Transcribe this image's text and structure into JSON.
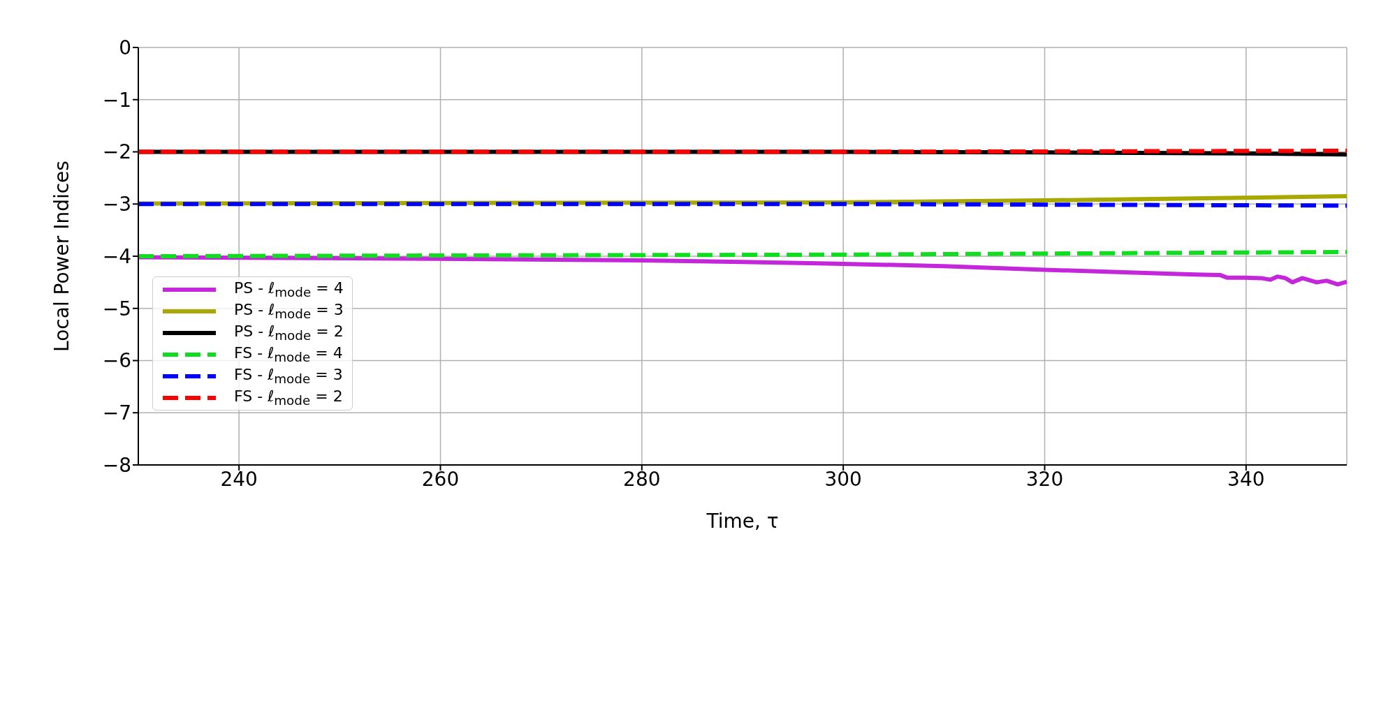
{
  "chart_data": {
    "type": "line",
    "xlabel": "Time, τ",
    "ylabel": "Local Power Indices",
    "xlim": [
      230,
      350
    ],
    "xticks": [
      240,
      260,
      280,
      300,
      320,
      340
    ],
    "ylim": [
      -8,
      0
    ],
    "yticks": [
      -8,
      -7,
      -6,
      -5,
      -4,
      -3,
      -2,
      -1,
      0
    ],
    "grid": true,
    "legend": "bottom left",
    "marker": "none",
    "series": [
      {
        "name": "PS - ℓ$_{mode}$ = 4",
        "color": "#c327d9",
        "line_style": "solid",
        "x": [
          230,
          260,
          280,
          290,
          298.5,
          310,
          320,
          330,
          335,
          337.4,
          338.1,
          339.8,
          341.5,
          342.4,
          343.1,
          343.9,
          344.6,
          345.6,
          347,
          348,
          349.1,
          350
        ],
        "values": [
          -4.02,
          -4.05,
          -4.08,
          -4.11,
          -4.14,
          -4.19,
          -4.26,
          -4.32,
          -4.35,
          -4.36,
          -4.41,
          -4.41,
          -4.42,
          -4.45,
          -4.39,
          -4.42,
          -4.5,
          -4.42,
          -4.5,
          -4.47,
          -4.54,
          -4.49
        ]
      },
      {
        "name": "PS - ℓ$_{mode}$ = 3",
        "color": "#a8a800",
        "line_style": "solid",
        "x": [
          230,
          260,
          298.5,
          320,
          340,
          350
        ],
        "values": [
          -2.99,
          -2.98,
          -2.97,
          -2.93,
          -2.88,
          -2.85
        ]
      },
      {
        "name": "PS - ℓ$_{mode}$ = 2",
        "color": "#000000",
        "line_style": "solid",
        "x": [
          230,
          300,
          320,
          340,
          350
        ],
        "values": [
          -2.0,
          -2.0,
          -2.01,
          -2.03,
          -2.05
        ]
      },
      {
        "name": "FS - ℓ$_{mode}$ = 4",
        "color": "#10dd20",
        "line_style": "dashed",
        "x": [
          230,
          300,
          350
        ],
        "values": [
          -4.0,
          -3.97,
          -3.92
        ]
      },
      {
        "name": "FS - ℓ$_{mode}$ = 3",
        "color": "#0000ff",
        "line_style": "dashed",
        "x": [
          230,
          300,
          350
        ],
        "values": [
          -3.0,
          -3.0,
          -3.03
        ]
      },
      {
        "name": "FS - ℓ$_{mode}$ = 2",
        "color": "#ff0000",
        "line_style": "dashed",
        "x": [
          230,
          300,
          350
        ],
        "values": [
          -2.0,
          -2.0,
          -1.98
        ]
      }
    ]
  }
}
